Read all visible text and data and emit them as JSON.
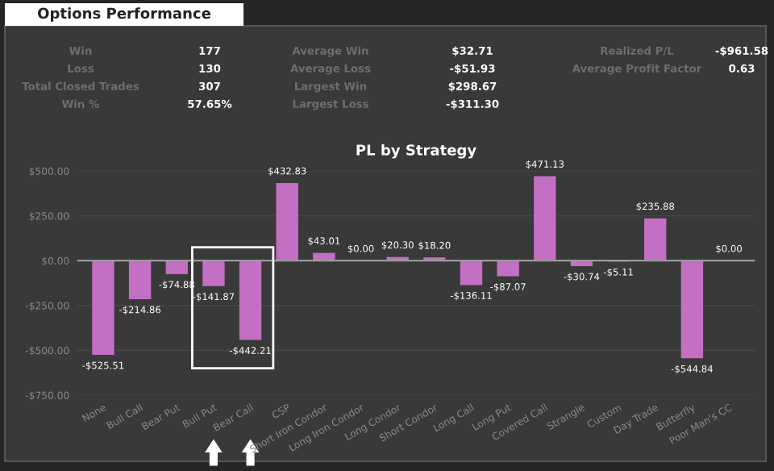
{
  "chart_data": {
    "type": "bar",
    "title": "PL by Strategy",
    "categories": [
      "None",
      "Bull Call",
      "Bear Put",
      "Bull Put",
      "Bear Call",
      "CSP",
      "Short Iron Condor",
      "Long Iron Condor",
      "Long Condor",
      "Short Condor",
      "Long Call",
      "Long Put",
      "Covered Call",
      "Strangle",
      "Custom",
      "Day Trade",
      "Butterfly",
      "Poor Man's CC"
    ],
    "values": [
      -525.51,
      -214.86,
      -74.88,
      -141.87,
      -442.21,
      432.83,
      43.01,
      0.0,
      20.3,
      18.2,
      -136.11,
      -87.07,
      471.13,
      -30.74,
      -5.11,
      235.88,
      -544.84,
      0.0
    ],
    "value_labels": [
      "-$525.51",
      "-$214.86",
      "-$74.88",
      "-$141.87",
      "-$442.21",
      "$432.83",
      "$43.01",
      "$0.00",
      "$20.30",
      "$18.20",
      "-$136.11",
      "-$87.07",
      "$471.13",
      "-$30.74",
      "-$5.11",
      "$235.88",
      "-$544.84",
      "$0.00"
    ],
    "color": "#c36fc3",
    "ylim": [
      -750,
      500
    ],
    "yticks": [
      {
        "value": -750,
        "label": "-$750.00"
      },
      {
        "value": -500,
        "label": "-$500.00"
      },
      {
        "value": -250,
        "label": "-$250.00"
      },
      {
        "value": 0,
        "label": "$0.00"
      },
      {
        "value": 250,
        "label": "$250.00"
      },
      {
        "value": 500,
        "label": "$500.00"
      }
    ],
    "grid": "y",
    "annotations": [
      "Options Performance",
      "Win",
      "177",
      "Loss",
      "130",
      "Total Closed Trades",
      "307",
      "Win %",
      "57.65%",
      "Average Win",
      "$32.71",
      "Average Loss",
      "-$51.93",
      "Largest Win",
      "$298.67",
      "Largest Loss",
      "-$311.30",
      "Realized P/L",
      "-$961.58",
      "Average Profit Factor",
      "0.63"
    ]
  }
}
